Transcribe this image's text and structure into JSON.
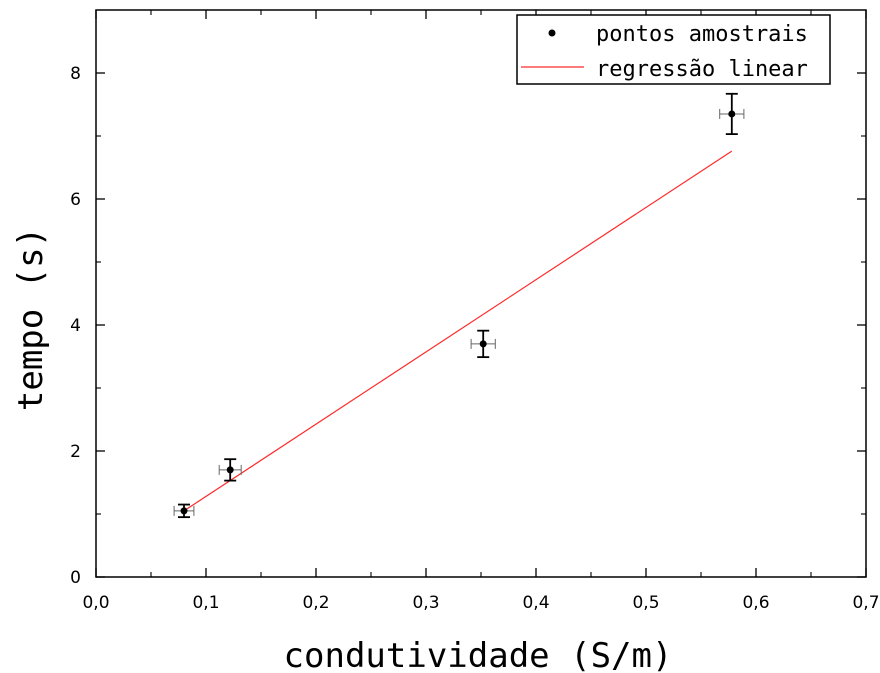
{
  "chart_data": {
    "type": "scatter",
    "xlabel": "condutividade (S/m)",
    "ylabel": "tempo (s)",
    "xlim": [
      0.0,
      0.7
    ],
    "ylim": [
      0,
      9
    ],
    "xticks": [
      0.0,
      0.1,
      0.2,
      0.3,
      0.4,
      0.5,
      0.6,
      0.7
    ],
    "xtick_labels": [
      "0,0",
      "0,1",
      "0,2",
      "0,3",
      "0,4",
      "0,5",
      "0,6",
      "0,7"
    ],
    "yticks": [
      0,
      2,
      4,
      6,
      8
    ],
    "ytick_labels": [
      "0",
      "2",
      "4",
      "6",
      "8"
    ],
    "grid": false,
    "legend_position": "top-right",
    "series": [
      {
        "name": "pontos amostrais",
        "kind": "points",
        "color": "#000000",
        "x": [
          0.08,
          0.122,
          0.352,
          0.578
        ],
        "y": [
          1.05,
          1.7,
          3.7,
          7.35
        ],
        "x_err": [
          0.009,
          0.01,
          0.011,
          0.011
        ],
        "y_err": [
          0.1,
          0.17,
          0.21,
          0.32
        ]
      },
      {
        "name": "regressão linear",
        "kind": "line",
        "color": "#ff2a2a",
        "x": [
          0.08,
          0.578
        ],
        "y": [
          1.05,
          6.76
        ]
      }
    ]
  }
}
